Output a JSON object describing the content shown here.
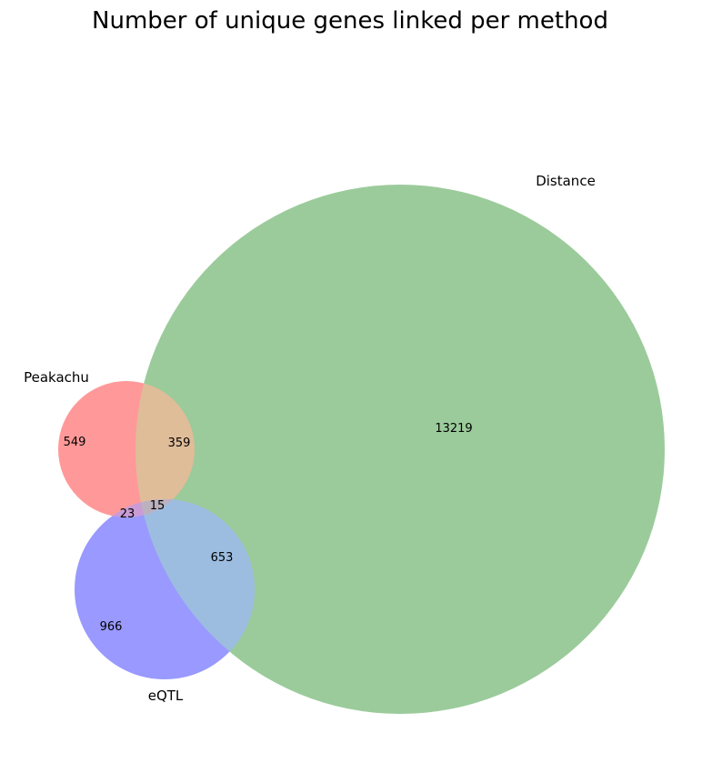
{
  "title": "Number of unique genes linked per method",
  "sets": {
    "peakachu": {
      "label": "Peakachu",
      "color": "#ff0000"
    },
    "distance": {
      "label": "Distance",
      "color": "#008000"
    },
    "eqtl": {
      "label": "eQTL",
      "color": "#0000ff"
    }
  },
  "regions": {
    "peakachu_only": "549",
    "peakachu_distance": "359",
    "distance_only": "13219",
    "peakachu_eqtl": "23",
    "all_three": "15",
    "distance_eqtl": "653",
    "eqtl_only": "966"
  },
  "chart_data": {
    "type": "venn3",
    "title": "Number of unique genes linked per method",
    "sets": [
      "Peakachu",
      "Distance",
      "eQTL"
    ],
    "subsets": {
      "Peakachu only": 549,
      "Distance only": 13219,
      "eQTL only": 966,
      "Peakachu & Distance only": 359,
      "Peakachu & eQTL only": 23,
      "Distance & eQTL only": 653,
      "Peakachu & Distance & eQTL": 15
    }
  }
}
